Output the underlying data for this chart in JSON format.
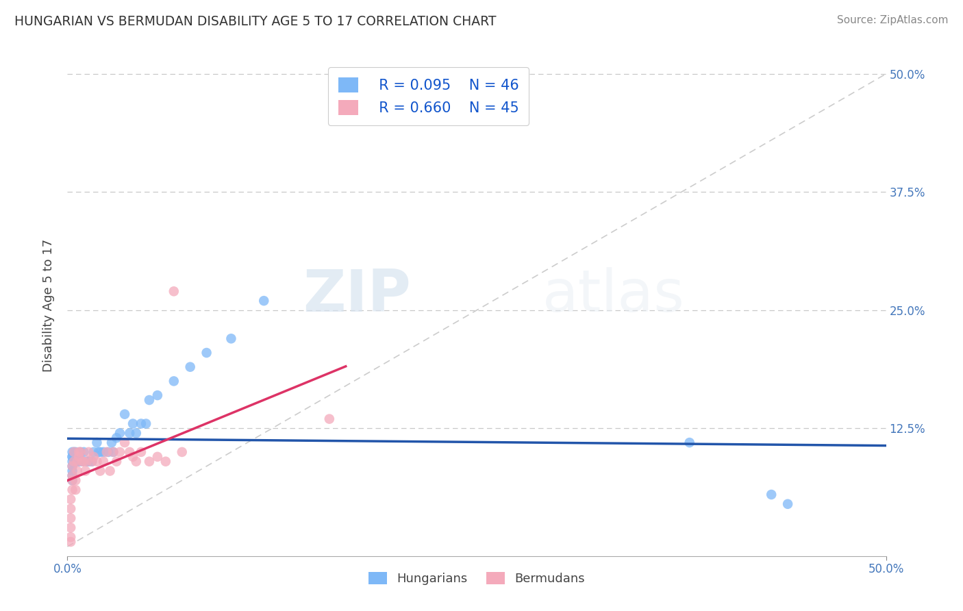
{
  "title": "HUNGARIAN VS BERMUDAN DISABILITY AGE 5 TO 17 CORRELATION CHART",
  "source": "Source: ZipAtlas.com",
  "ylabel": "Disability Age 5 to 17",
  "xlim": [
    0.0,
    0.5
  ],
  "ylim": [
    -0.01,
    0.52
  ],
  "xtick_vals": [
    0.0,
    0.5
  ],
  "xtick_labels": [
    "0.0%",
    "50.0%"
  ],
  "ytick_vals": [
    0.125,
    0.25,
    0.375,
    0.5
  ],
  "ytick_labels": [
    "12.5%",
    "25.0%",
    "37.5%",
    "50.0%"
  ],
  "grid_ytick_vals": [
    0.125,
    0.25,
    0.375,
    0.5
  ],
  "hungarian_color": "#7EB8F7",
  "bermudan_color": "#F4AABB",
  "hungarian_line_color": "#2255AA",
  "bermudan_line_color": "#DD3366",
  "identity_line_color": "#CCCCCC",
  "legend_R_hungarian": "R = 0.095",
  "legend_N_hungarian": "N = 46",
  "legend_R_bermudan": "R = 0.660",
  "legend_N_bermudan": "N = 45",
  "watermark_zip": "ZIP",
  "watermark_atlas": "atlas",
  "hungarian_x": [
    0.003,
    0.003,
    0.003,
    0.003,
    0.003,
    0.003,
    0.003,
    0.003,
    0.004,
    0.004,
    0.005,
    0.006,
    0.007,
    0.007,
    0.008,
    0.009,
    0.01,
    0.012,
    0.013,
    0.015,
    0.016,
    0.018,
    0.019,
    0.02,
    0.022,
    0.025,
    0.027,
    0.028,
    0.03,
    0.032,
    0.035,
    0.038,
    0.04,
    0.042,
    0.045,
    0.048,
    0.05,
    0.055,
    0.065,
    0.075,
    0.085,
    0.1,
    0.12,
    0.38,
    0.43,
    0.44
  ],
  "hungarian_y": [
    0.09,
    0.095,
    0.1,
    0.095,
    0.085,
    0.08,
    0.075,
    0.07,
    0.095,
    0.1,
    0.1,
    0.09,
    0.09,
    0.095,
    0.1,
    0.09,
    0.1,
    0.09,
    0.09,
    0.09,
    0.1,
    0.11,
    0.1,
    0.1,
    0.1,
    0.1,
    0.11,
    0.1,
    0.115,
    0.12,
    0.14,
    0.12,
    0.13,
    0.12,
    0.13,
    0.13,
    0.155,
    0.16,
    0.175,
    0.19,
    0.205,
    0.22,
    0.26,
    0.11,
    0.055,
    0.045
  ],
  "bermudan_x": [
    0.002,
    0.002,
    0.002,
    0.002,
    0.002,
    0.002,
    0.003,
    0.003,
    0.003,
    0.003,
    0.004,
    0.004,
    0.005,
    0.005,
    0.006,
    0.006,
    0.007,
    0.007,
    0.008,
    0.009,
    0.01,
    0.011,
    0.012,
    0.013,
    0.015,
    0.016,
    0.018,
    0.02,
    0.022,
    0.024,
    0.026,
    0.028,
    0.03,
    0.032,
    0.035,
    0.038,
    0.04,
    0.042,
    0.045,
    0.05,
    0.055,
    0.06,
    0.065,
    0.07,
    0.16
  ],
  "bermudan_y": [
    0.005,
    0.01,
    0.02,
    0.03,
    0.04,
    0.05,
    0.06,
    0.07,
    0.075,
    0.085,
    0.09,
    0.1,
    0.06,
    0.07,
    0.08,
    0.09,
    0.1,
    0.095,
    0.1,
    0.09,
    0.09,
    0.08,
    0.09,
    0.1,
    0.09,
    0.095,
    0.09,
    0.08,
    0.09,
    0.1,
    0.08,
    0.1,
    0.09,
    0.1,
    0.11,
    0.1,
    0.095,
    0.09,
    0.1,
    0.09,
    0.095,
    0.09,
    0.27,
    0.1,
    0.135
  ],
  "hu_line_x": [
    0.0,
    0.5
  ],
  "be_line_x_start": 0.0,
  "be_line_x_end": 0.17
}
